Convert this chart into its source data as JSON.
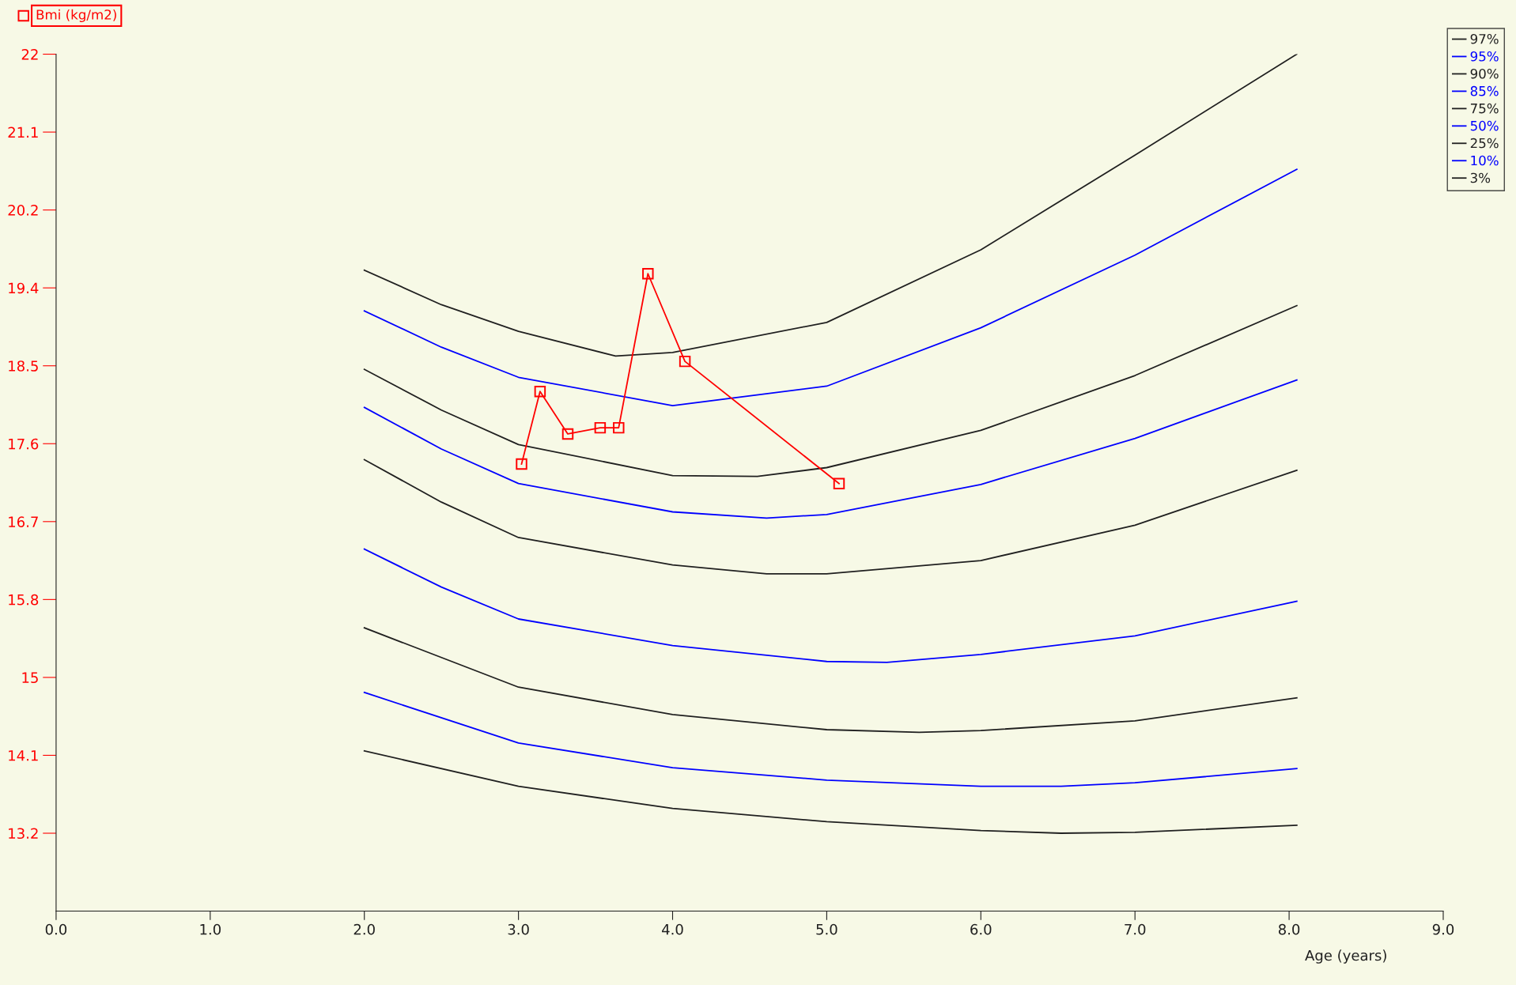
{
  "chart_data": {
    "type": "line",
    "xlabel": "Age (years)",
    "ylabel": "Bmi (kg/m2)",
    "xlim": [
      0,
      9
    ],
    "ylim": [
      12.32,
      22
    ],
    "xticks": [
      {
        "value": 0,
        "label": "0.0"
      },
      {
        "value": 1,
        "label": "1.0"
      },
      {
        "value": 2,
        "label": "2.0"
      },
      {
        "value": 3,
        "label": "3.0"
      },
      {
        "value": 4,
        "label": "4.0"
      },
      {
        "value": 5,
        "label": "5.0"
      },
      {
        "value": 6,
        "label": "6.0"
      },
      {
        "value": 7,
        "label": "7.0"
      },
      {
        "value": 8,
        "label": "8.0"
      },
      {
        "value": 9,
        "label": "9.0"
      }
    ],
    "yticks": [
      {
        "value": 13.2,
        "label": "13.2"
      },
      {
        "value": 14.08,
        "label": "14.1"
      },
      {
        "value": 14.96,
        "label": "15"
      },
      {
        "value": 15.84,
        "label": "15.8"
      },
      {
        "value": 16.72,
        "label": "16.7"
      },
      {
        "value": 17.6,
        "label": "17.6"
      },
      {
        "value": 18.48,
        "label": "18.5"
      },
      {
        "value": 19.36,
        "label": "19.4"
      },
      {
        "value": 20.24,
        "label": "20.2"
      },
      {
        "value": 21.12,
        "label": "21.1"
      },
      {
        "value": 22,
        "label": "22"
      }
    ],
    "grid": false,
    "legend": "top right",
    "line_style": "solid",
    "series": [
      {
        "color": "#ff0000",
        "marker": "square",
        "x": [
          3.02,
          3.14,
          3.32,
          3.53,
          3.65,
          3.84,
          4.08,
          5.08
        ],
        "values": [
          17.37,
          18.19,
          17.71,
          17.78,
          17.78,
          19.52,
          18.53,
          17.15
        ]
      },
      {
        "name": "97%",
        "color": "#202020",
        "marker": "none",
        "x": [
          2.0,
          2.5,
          3.0,
          3.63,
          4.0,
          5.0,
          6.0,
          7.0,
          8.05
        ],
        "values": [
          19.56,
          19.17,
          18.87,
          18.59,
          18.63,
          18.97,
          19.79,
          20.86,
          22.0
        ]
      },
      {
        "name": "95%",
        "color": "#0000ff",
        "marker": "none",
        "x": [
          2.0,
          2.5,
          3.0,
          4.0,
          5.0,
          6.0,
          7.0,
          8.05
        ],
        "values": [
          19.1,
          18.69,
          18.35,
          18.03,
          18.25,
          18.91,
          19.73,
          20.7
        ]
      },
      {
        "name": "90%",
        "color": "#202020",
        "marker": "none",
        "x": [
          2.0,
          2.5,
          3.0,
          4.0,
          4.55,
          5.0,
          6.0,
          7.0,
          8.05
        ],
        "values": [
          18.44,
          17.98,
          17.59,
          17.24,
          17.23,
          17.33,
          17.75,
          18.37,
          19.16
        ]
      },
      {
        "name": "85%",
        "color": "#0000ff",
        "marker": "none",
        "x": [
          2.0,
          2.5,
          3.0,
          4.0,
          4.61,
          5.0,
          6.0,
          7.0,
          8.05
        ],
        "values": [
          18.01,
          17.54,
          17.15,
          16.83,
          16.76,
          16.8,
          17.14,
          17.66,
          18.32
        ]
      },
      {
        "name": "75%",
        "color": "#202020",
        "marker": "none",
        "x": [
          2.0,
          2.5,
          3.0,
          4.0,
          4.61,
          5.0,
          6.0,
          7.0,
          8.05
        ],
        "values": [
          17.42,
          16.94,
          16.54,
          16.23,
          16.13,
          16.13,
          16.28,
          16.68,
          17.3
        ]
      },
      {
        "name": "50%",
        "color": "#0000ff",
        "marker": "none",
        "x": [
          2.0,
          2.5,
          3.0,
          4.0,
          5.0,
          5.39,
          6.0,
          7.0,
          8.05
        ],
        "values": [
          16.41,
          15.98,
          15.62,
          15.32,
          15.14,
          15.13,
          15.22,
          15.43,
          15.82
        ]
      },
      {
        "name": "25%",
        "color": "#202020",
        "marker": "none",
        "x": [
          2.0,
          3.0,
          4.0,
          5.0,
          5.6,
          6.0,
          7.0,
          8.05
        ],
        "values": [
          15.52,
          14.85,
          14.54,
          14.37,
          14.34,
          14.36,
          14.47,
          14.73
        ]
      },
      {
        "name": "10%",
        "color": "#0000ff",
        "marker": "none",
        "x": [
          2.0,
          3.0,
          4.0,
          5.0,
          6.0,
          6.52,
          7.0,
          8.05
        ],
        "values": [
          14.79,
          14.22,
          13.94,
          13.8,
          13.73,
          13.73,
          13.77,
          13.93
        ]
      },
      {
        "name": "3%",
        "color": "#202020",
        "marker": "none",
        "x": [
          2.0,
          3.0,
          4.0,
          5.0,
          6.0,
          6.52,
          7.0,
          8.05
        ],
        "values": [
          14.13,
          13.73,
          13.48,
          13.33,
          13.23,
          13.2,
          13.21,
          13.29
        ]
      }
    ]
  }
}
